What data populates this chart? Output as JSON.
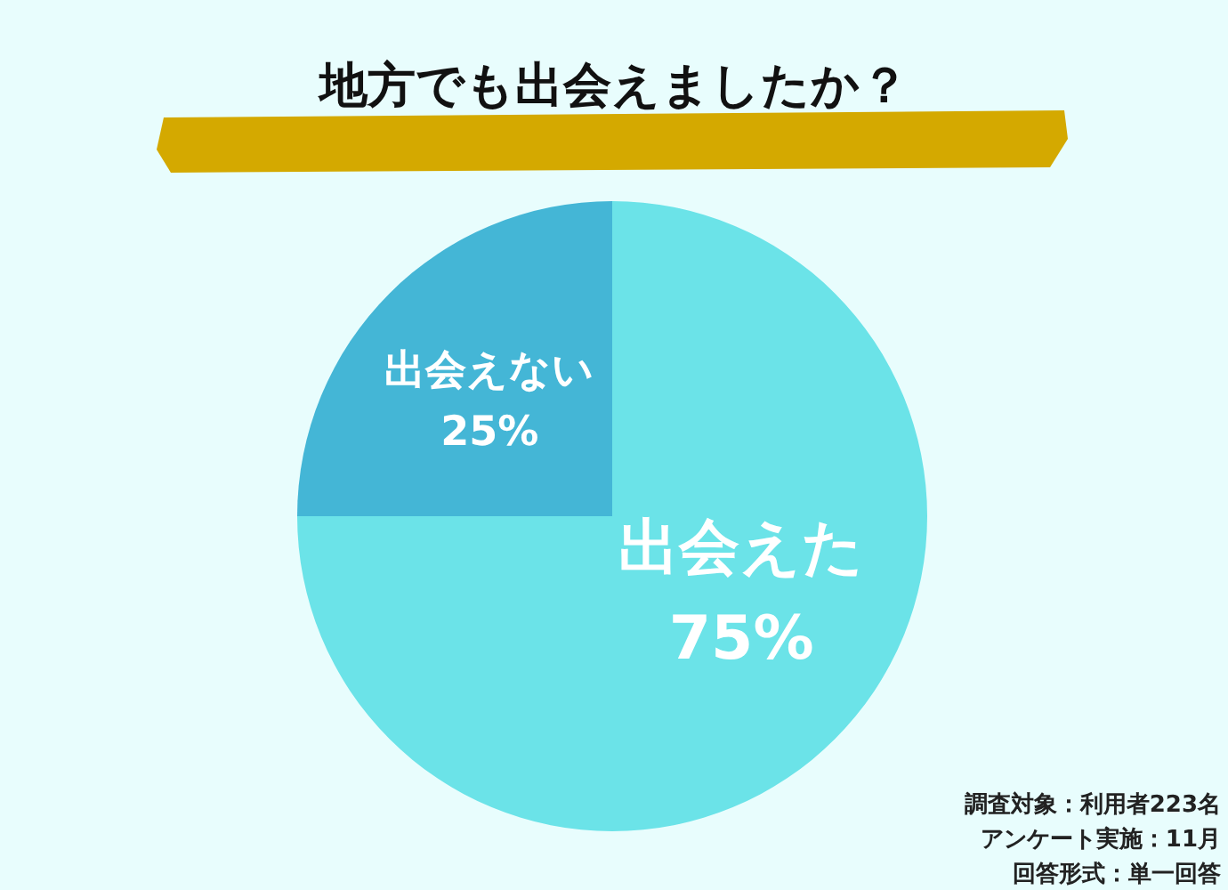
{
  "chart_data": {
    "type": "pie",
    "title": "地方でも出会えましたか？",
    "categories": [
      "出会えた",
      "出会えない"
    ],
    "values": [
      75,
      25
    ],
    "colors": [
      "#6be3e8",
      "#44b6d6"
    ],
    "value_labels": [
      "75%",
      "25%"
    ],
    "annotations": [
      "調査対象：利用者223名",
      "アンケート実施：11月",
      "回答形式：単一回答"
    ]
  }
}
